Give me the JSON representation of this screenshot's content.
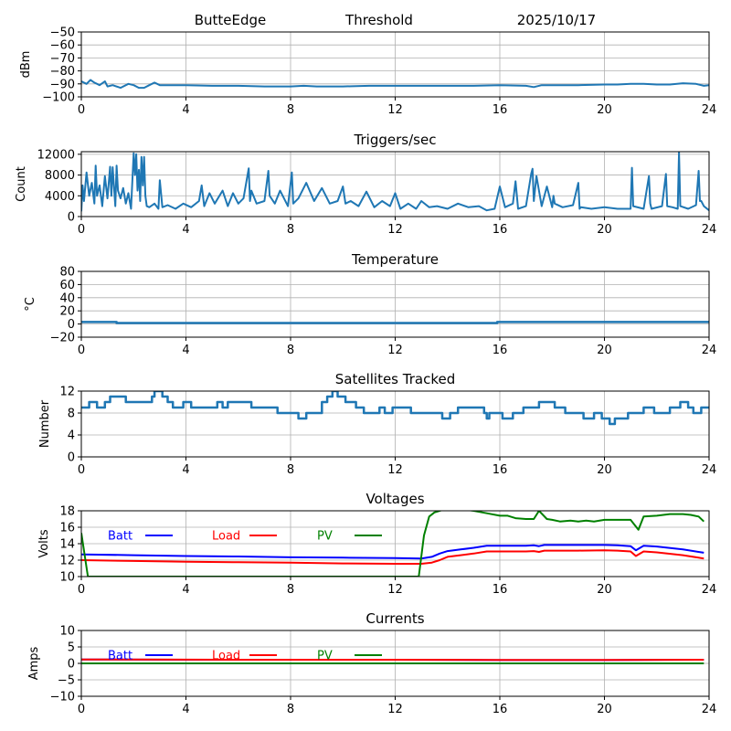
{
  "figure": {
    "header": {
      "station": "ButteEdge",
      "channel": "Threshold",
      "date": "2025/10/17"
    }
  },
  "chart_data": [
    {
      "id": "threshold",
      "type": "line",
      "title": "",
      "xlabel": "",
      "ylabel": "dBm",
      "xlim": [
        0,
        24
      ],
      "ylim": [
        -100,
        -50
      ],
      "xticks": [
        0,
        4,
        8,
        12,
        16,
        20,
        24
      ],
      "yticks": [
        -100,
        -90,
        -80,
        -70,
        -60,
        -50
      ],
      "ytick_labels": [
        "−100",
        "−90",
        "−80",
        "−70",
        "−60",
        "−50"
      ],
      "grid": true,
      "series": [
        {
          "name": "Threshold",
          "color": "#1f77b4",
          "x": [
            0,
            0.2,
            0.35,
            0.5,
            0.7,
            0.9,
            1.0,
            1.2,
            1.5,
            1.8,
            2.0,
            2.2,
            2.4,
            2.6,
            2.8,
            3.0,
            3.5,
            4,
            5,
            6,
            7,
            8,
            8.5,
            9,
            10,
            11,
            12,
            13,
            14,
            15,
            16,
            17,
            17.3,
            17.6,
            18,
            19,
            20,
            20.5,
            21,
            21.5,
            22,
            22.5,
            23,
            23.5,
            23.8,
            24
          ],
          "y": [
            -88,
            -90,
            -87,
            -89,
            -91,
            -88,
            -92,
            -91,
            -93,
            -90,
            -91,
            -93,
            -93,
            -91,
            -89,
            -91,
            -91,
            -91,
            -91.5,
            -91.5,
            -92,
            -92,
            -91.5,
            -92,
            -92,
            -91.5,
            -91.5,
            -91.5,
            -91.5,
            -91.5,
            -91,
            -91.5,
            -92.5,
            -91,
            -91,
            -91,
            -90.5,
            -90.5,
            -90,
            -90,
            -90.5,
            -90.5,
            -89.5,
            -90,
            -91.5,
            -91
          ]
        }
      ]
    },
    {
      "id": "triggers",
      "type": "line",
      "title": "Triggers/sec",
      "xlabel": "",
      "ylabel": "Count",
      "xlim": [
        0,
        24
      ],
      "ylim": [
        0,
        12500
      ],
      "xticks": [
        0,
        4,
        8,
        12,
        16,
        20,
        24
      ],
      "yticks": [
        0,
        4000,
        8000,
        12000
      ],
      "ytick_labels": [
        "0",
        "4000",
        "8000",
        "12000"
      ],
      "grid": true,
      "series": [
        {
          "name": "Triggers",
          "color": "#1f77b4",
          "x": [
            0,
            0.05,
            0.1,
            0.2,
            0.3,
            0.4,
            0.5,
            0.55,
            0.6,
            0.7,
            0.8,
            0.9,
            1.0,
            1.1,
            1.15,
            1.2,
            1.3,
            1.35,
            1.4,
            1.5,
            1.6,
            1.7,
            1.8,
            1.9,
            2.0,
            2.05,
            2.1,
            2.15,
            2.2,
            2.25,
            2.3,
            2.35,
            2.4,
            2.45,
            2.5,
            2.6,
            2.8,
            2.95,
            3.0,
            3.1,
            3.3,
            3.6,
            3.9,
            4.2,
            4.5,
            4.6,
            4.7,
            4.9,
            5.1,
            5.4,
            5.6,
            5.8,
            6.0,
            6.2,
            6.4,
            6.45,
            6.5,
            6.7,
            7.0,
            7.15,
            7.2,
            7.4,
            7.6,
            7.9,
            8.05,
            8.1,
            8.3,
            8.6,
            8.9,
            9.2,
            9.5,
            9.8,
            10.0,
            10.1,
            10.3,
            10.6,
            10.9,
            11.2,
            11.5,
            11.8,
            12.0,
            12.2,
            12.5,
            12.8,
            13.0,
            13.3,
            13.6,
            14.0,
            14.4,
            14.8,
            15.2,
            15.5,
            15.8,
            16.0,
            16.2,
            16.5,
            16.6,
            16.7,
            17.0,
            17.2,
            17.25,
            17.3,
            17.4,
            17.6,
            17.8,
            18.0,
            18.05,
            18.1,
            18.4,
            18.8,
            19.0,
            19.05,
            19.1,
            19.5,
            20.0,
            20.5,
            21.0,
            21.05,
            21.1,
            21.5,
            21.7,
            21.75,
            21.8,
            22.2,
            22.35,
            22.4,
            22.6,
            22.8,
            22.85,
            22.9,
            23.2,
            23.5,
            23.6,
            23.65,
            23.7,
            23.8,
            24
          ],
          "y": [
            1000,
            6000,
            3000,
            8500,
            4000,
            6500,
            2500,
            9800,
            4000,
            6000,
            2000,
            7800,
            3500,
            9600,
            4000,
            9500,
            2000,
            9800,
            5000,
            3500,
            5500,
            2500,
            4500,
            1500,
            12200,
            8000,
            12000,
            5000,
            9000,
            3000,
            11500,
            6000,
            11500,
            4000,
            2000,
            1800,
            2500,
            1500,
            7000,
            1800,
            2200,
            1500,
            2500,
            1800,
            3000,
            6000,
            2000,
            4500,
            2500,
            5000,
            2000,
            4500,
            2500,
            3500,
            9300,
            3000,
            5000,
            2500,
            3000,
            8800,
            4000,
            2500,
            5000,
            2000,
            8500,
            2500,
            3500,
            6500,
            3000,
            5500,
            2500,
            3000,
            5800,
            2500,
            3000,
            2000,
            4800,
            1800,
            3000,
            2000,
            4500,
            1500,
            2500,
            1500,
            3000,
            1800,
            2000,
            1500,
            2500,
            1800,
            2000,
            1200,
            1500,
            5800,
            1800,
            2500,
            6800,
            1500,
            2000,
            8300,
            9200,
            3000,
            7800,
            2000,
            5800,
            1800,
            4000,
            2500,
            1800,
            2200,
            6500,
            1500,
            1800,
            1500,
            1800,
            1500,
            1500,
            9400,
            2000,
            1500,
            7800,
            2500,
            1500,
            2000,
            8200,
            2000,
            1800,
            1500,
            12400,
            2000,
            1500,
            2200,
            8800,
            3000,
            3000,
            2000,
            1200
          ]
        }
      ]
    },
    {
      "id": "temperature",
      "type": "line",
      "title": "Temperature",
      "xlabel": "",
      "ylabel": "°C",
      "xlim": [
        0,
        24
      ],
      "ylim": [
        -20,
        80
      ],
      "xticks": [
        0,
        4,
        8,
        12,
        16,
        20,
        24
      ],
      "yticks": [
        -20,
        0,
        20,
        40,
        60,
        80
      ],
      "ytick_labels": [
        "−20",
        "0",
        "20",
        "40",
        "60",
        "80"
      ],
      "grid": true,
      "series": [
        {
          "name": "Temperature",
          "color": "#1f77b4",
          "x": [
            0,
            1.35,
            1.35,
            15.9,
            15.9,
            24
          ],
          "y": [
            3,
            3,
            1.5,
            1.5,
            3,
            3
          ]
        }
      ]
    },
    {
      "id": "satellites",
      "type": "line",
      "title": "Satellites Tracked",
      "xlabel": "",
      "ylabel": "Number",
      "xlim": [
        0,
        24
      ],
      "ylim": [
        0,
        12
      ],
      "xticks": [
        0,
        4,
        8,
        12,
        16,
        20,
        24
      ],
      "yticks": [
        0,
        4,
        8,
        12
      ],
      "ytick_labels": [
        "0",
        "4",
        "8",
        "12"
      ],
      "grid": true,
      "series": [
        {
          "name": "Satellites",
          "color": "#1f77b4",
          "step": true,
          "x": [
            0,
            0.3,
            0.6,
            0.9,
            1.1,
            1.3,
            1.7,
            2.3,
            2.7,
            2.8,
            3.1,
            3.3,
            3.5,
            3.9,
            4.2,
            4.5,
            5.2,
            5.4,
            5.6,
            5.7,
            6.2,
            6.5,
            6.8,
            7.5,
            8.3,
            8.6,
            9.0,
            9.2,
            9.4,
            9.6,
            9.8,
            10.1,
            10.5,
            10.8,
            11.0,
            11.4,
            11.6,
            11.9,
            12.3,
            12.6,
            12.8,
            13.0,
            13.5,
            13.8,
            14.1,
            14.4,
            14.9,
            15.4,
            15.5,
            15.6,
            15.8,
            16.1,
            16.5,
            16.9,
            17.5,
            17.8,
            18.1,
            18.3,
            18.5,
            18.8,
            19.2,
            19.6,
            19.9,
            20.2,
            20.4,
            20.9,
            21.5,
            21.9,
            22.5,
            22.9,
            23.2,
            23.4,
            23.7,
            24
          ],
          "y": [
            9,
            10,
            9,
            10,
            11,
            11,
            10,
            10,
            11,
            12,
            11,
            10,
            9,
            10,
            9,
            9,
            10,
            9,
            10,
            10,
            10,
            9,
            9,
            8,
            7,
            8,
            8,
            10,
            11,
            12,
            11,
            10,
            9,
            8,
            8,
            9,
            8,
            9,
            9,
            8,
            8,
            8,
            8,
            7,
            8,
            9,
            9,
            8,
            7,
            8,
            8,
            7,
            8,
            9,
            10,
            10,
            9,
            9,
            8,
            8,
            7,
            8,
            7,
            6,
            7,
            8,
            9,
            8,
            9,
            10,
            9,
            8,
            9,
            9
          ]
        }
      ]
    },
    {
      "id": "voltages",
      "type": "line",
      "title": "Voltages",
      "xlabel": "",
      "ylabel": "Volts",
      "xlim": [
        0,
        24
      ],
      "ylim": [
        10,
        18
      ],
      "xticks": [
        0,
        4,
        8,
        12,
        16,
        20,
        24
      ],
      "yticks": [
        10,
        12,
        14,
        16,
        18
      ],
      "ytick_labels": [
        "10",
        "12",
        "14",
        "16",
        "18"
      ],
      "grid": true,
      "legend": {
        "placement": "top-left-inline",
        "entries": [
          "Batt",
          "Load",
          "PV"
        ]
      },
      "series": [
        {
          "name": "Batt",
          "color": "#0000ff",
          "x": [
            0,
            2,
            4,
            6,
            8,
            10,
            12,
            13.0,
            13.4,
            13.7,
            14.0,
            14.5,
            15.0,
            15.5,
            16,
            17,
            17.3,
            17.5,
            17.7,
            18,
            19,
            20,
            20.5,
            21.0,
            21.2,
            21.5,
            22,
            23,
            23.8
          ],
          "y": [
            12.7,
            12.6,
            12.5,
            12.45,
            12.35,
            12.3,
            12.25,
            12.2,
            12.4,
            12.8,
            13.1,
            13.3,
            13.5,
            13.75,
            13.75,
            13.75,
            13.8,
            13.7,
            13.85,
            13.85,
            13.85,
            13.85,
            13.8,
            13.7,
            13.2,
            13.75,
            13.65,
            13.3,
            12.9
          ]
        },
        {
          "name": "Load",
          "color": "#ff0000",
          "x": [
            0,
            2,
            4,
            6,
            8,
            10,
            12,
            13.0,
            13.4,
            13.7,
            14.0,
            14.5,
            15.0,
            15.5,
            16,
            17,
            17.3,
            17.5,
            17.7,
            18,
            19,
            20,
            20.5,
            21.0,
            21.2,
            21.5,
            22,
            23,
            23.8
          ],
          "y": [
            12.0,
            11.9,
            11.8,
            11.75,
            11.7,
            11.6,
            11.55,
            11.55,
            11.7,
            12.0,
            12.4,
            12.6,
            12.8,
            13.05,
            13.05,
            13.05,
            13.1,
            13.0,
            13.15,
            13.15,
            13.15,
            13.2,
            13.15,
            13.05,
            12.5,
            13.05,
            12.95,
            12.6,
            12.2
          ]
        },
        {
          "name": "PV",
          "color": "#008000",
          "x": [
            0,
            0.25,
            12.9,
            13.1,
            13.3,
            13.5,
            13.7,
            14.0,
            14.5,
            15.0,
            15.5,
            16.0,
            16.3,
            16.6,
            17.0,
            17.3,
            17.5,
            17.8,
            18.0,
            18.3,
            18.7,
            19.0,
            19.3,
            19.6,
            20.0,
            20.5,
            21.0,
            21.3,
            21.5,
            22.0,
            22.5,
            23.0,
            23.3,
            23.6,
            23.8
          ],
          "y": [
            15.3,
            10.0,
            10.0,
            15.0,
            17.3,
            17.8,
            18.0,
            18.3,
            18.2,
            18.0,
            17.7,
            17.4,
            17.4,
            17.1,
            17.0,
            17.0,
            18.0,
            17.0,
            16.9,
            16.7,
            16.8,
            16.7,
            16.8,
            16.7,
            16.9,
            16.9,
            16.9,
            15.7,
            17.3,
            17.4,
            17.6,
            17.6,
            17.5,
            17.3,
            16.7
          ]
        }
      ]
    },
    {
      "id": "currents",
      "type": "line",
      "title": "Currents",
      "xlabel": "",
      "ylabel": "Amps",
      "xlim": [
        0,
        24
      ],
      "ylim": [
        -10,
        10
      ],
      "xticks": [
        0,
        4,
        8,
        12,
        16,
        20,
        24
      ],
      "yticks": [
        -10,
        -5,
        0,
        5,
        10
      ],
      "ytick_labels": [
        "−10",
        "−5",
        "0",
        "5",
        "10"
      ],
      "grid": true,
      "legend": {
        "placement": "top-left-inline",
        "entries": [
          "Batt",
          "Load",
          "PV"
        ]
      },
      "series": [
        {
          "name": "Batt",
          "color": "#0000ff",
          "x": [
            0,
            4,
            8,
            12,
            16,
            20,
            23.8
          ],
          "y": [
            1.2,
            1.1,
            1.1,
            1.1,
            1.0,
            1.0,
            1.1
          ]
        },
        {
          "name": "Load",
          "color": "#ff0000",
          "x": [
            0,
            4,
            8,
            12,
            16,
            20,
            23.8
          ],
          "y": [
            1.2,
            1.15,
            1.1,
            1.1,
            1.05,
            1.05,
            1.1
          ]
        },
        {
          "name": "PV",
          "color": "#008000",
          "x": [
            0,
            4,
            8,
            12,
            16,
            20,
            23.8
          ],
          "y": [
            0,
            0,
            0,
            0,
            0,
            0,
            0
          ]
        }
      ]
    }
  ]
}
